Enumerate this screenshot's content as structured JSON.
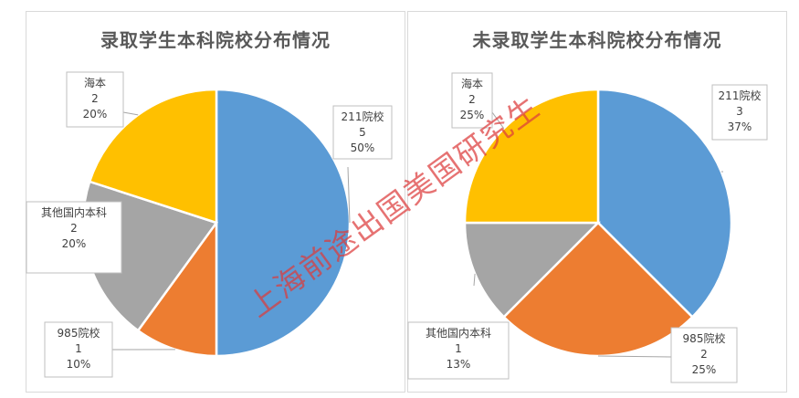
{
  "chart_data": [
    {
      "type": "pie",
      "title": "录取学生本科院校分布情况",
      "slices": [
        {
          "name": "211院校",
          "value": 5,
          "percent": "50%",
          "color": "#5B9BD5"
        },
        {
          "name": "985院校",
          "value": 1,
          "percent": "10%",
          "color": "#ED7D31"
        },
        {
          "name": "其他国内本科",
          "value": 2,
          "percent": "20%",
          "color": "#A5A5A5"
        },
        {
          "name": "海本",
          "value": 2,
          "percent": "20%",
          "color": "#FFC000"
        }
      ]
    },
    {
      "type": "pie",
      "title": "未录取学生本科院校分布情况",
      "slices": [
        {
          "name": "211院校",
          "value": 3,
          "percent": "37%",
          "color": "#5B9BD5"
        },
        {
          "name": "985院校",
          "value": 2,
          "percent": "25%",
          "color": "#ED7D31"
        },
        {
          "name": "其他国内本科",
          "value": 1,
          "percent": "13%",
          "color": "#A5A5A5"
        },
        {
          "name": "海本",
          "value": 2,
          "percent": "25%",
          "color": "#FFC000"
        }
      ]
    }
  ],
  "watermark": "上海前途出国美国研究生"
}
